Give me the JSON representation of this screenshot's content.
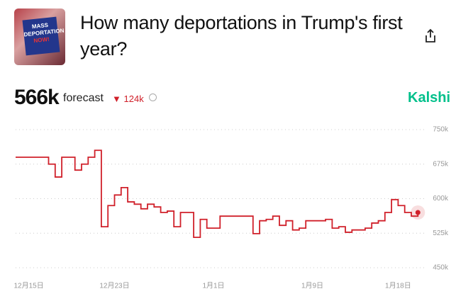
{
  "header": {
    "title": "How many deportations in Trump's first year?",
    "image_text": [
      "MASS",
      "DEPORTATION",
      "NOW!"
    ]
  },
  "forecast": {
    "value": "566k",
    "label": "forecast",
    "direction": "▼",
    "change": "124k"
  },
  "brand": "Kalshi",
  "chart_data": {
    "type": "line",
    "categories": [
      null,
      null,
      "12月15日",
      null,
      null,
      null,
      null,
      null,
      null,
      null,
      null,
      null,
      null,
      null,
      null,
      "12月23日",
      null,
      null,
      null,
      null,
      null,
      null,
      null,
      null,
      null,
      null,
      null,
      null,
      null,
      null,
      "1月1日",
      null,
      null,
      null,
      null,
      null,
      null,
      null,
      null,
      null,
      null,
      null,
      null,
      null,
      null,
      "1月9日",
      null,
      null,
      null,
      null,
      null,
      null,
      null,
      null,
      null,
      null,
      null,
      null,
      "1月18日",
      null,
      null,
      null
    ],
    "series": [
      {
        "color": "#d0202a",
        "values": [
          690000,
          690000,
          690000,
          690000,
          690000,
          675000,
          647000,
          690000,
          690000,
          662000,
          675000,
          690000,
          705000,
          539000,
          585000,
          608000,
          624000,
          593000,
          588000,
          578000,
          588000,
          582000,
          570000,
          573000,
          539000,
          570000,
          570000,
          516000,
          555000,
          536000,
          536000,
          562000,
          562000,
          562000,
          562000,
          562000,
          524000,
          552000,
          555000,
          562000,
          542000,
          552000,
          532000,
          536000,
          552000,
          552000,
          552000,
          555000,
          536000,
          539000,
          527000,
          532000,
          532000,
          536000,
          547000,
          552000,
          570000,
          598000,
          585000,
          570000,
          562000,
          570000
        ]
      }
    ],
    "ylim": [
      450000,
      750000
    ],
    "yticks": [
      {
        "value": 450000,
        "label": "450k"
      },
      {
        "value": 525000,
        "label": "525k"
      },
      {
        "value": 600000,
        "label": "600k"
      },
      {
        "value": 675000,
        "label": "675k"
      },
      {
        "value": 750000,
        "label": "750k"
      }
    ],
    "grid": true
  }
}
